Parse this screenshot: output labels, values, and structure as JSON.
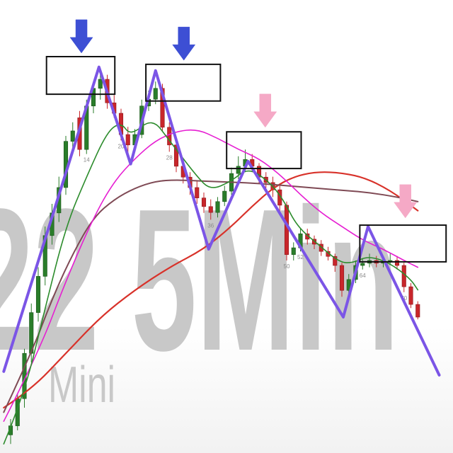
{
  "watermark": {
    "main_text": "22 5Min",
    "sub_text": "Mini",
    "color": "#c8c8c8"
  },
  "chart_data": {
    "type": "line",
    "xlim": [
      0,
      64
    ],
    "ylim": [
      0,
      100
    ],
    "grid": false,
    "legend": "none",
    "up_color": "#2a7d2a",
    "down_color": "#c8262b",
    "candles_format": [
      "x",
      "open",
      "high",
      "low",
      "close"
    ],
    "candles": [
      [
        1,
        4,
        7.5,
        2,
        6
      ],
      [
        2,
        6,
        13,
        5,
        12
      ],
      [
        3,
        12,
        23,
        10,
        22
      ],
      [
        4,
        22,
        33,
        20,
        31
      ],
      [
        5,
        31,
        41,
        29,
        39
      ],
      [
        6,
        39,
        50,
        37,
        48
      ],
      [
        7,
        48,
        55,
        46,
        53
      ],
      [
        8,
        53,
        61,
        51,
        58.6
      ],
      [
        9,
        58.6,
        70,
        57,
        68.8
      ],
      [
        10,
        68.8,
        73,
        66,
        71.1
      ],
      [
        11,
        74,
        75.5,
        65.5,
        67
      ],
      [
        12,
        67,
        78,
        66,
        76.6
      ],
      [
        13,
        76.6,
        82,
        75,
        80.5
      ],
      [
        14,
        80.5,
        84.5,
        78,
        82.5
      ],
      [
        15,
        82.5,
        83.5,
        76,
        77.3
      ],
      [
        16,
        77.3,
        79,
        74,
        75
      ],
      [
        17,
        75,
        76,
        69,
        70.3
      ],
      [
        18,
        70.3,
        72,
        66,
        68
      ],
      [
        19,
        68,
        71.5,
        66.5,
        70.3
      ],
      [
        20,
        70.3,
        78,
        69.5,
        76.6
      ],
      [
        21,
        76.6,
        80,
        75.5,
        78.1
      ],
      [
        22,
        78.1,
        82,
        77,
        80.5
      ],
      [
        23,
        80.5,
        81.5,
        71,
        71.9
      ],
      [
        24,
        71.9,
        73,
        66.5,
        68
      ],
      [
        25,
        68,
        69,
        62,
        63.3
      ],
      [
        26,
        63.3,
        65,
        59.5,
        60.9
      ],
      [
        27,
        60.9,
        62,
        57,
        58.6
      ],
      [
        28,
        58.6,
        60,
        55,
        56.3
      ],
      [
        29,
        56.3,
        57.5,
        53,
        54.4
      ],
      [
        30,
        54.4,
        56,
        51.5,
        53.1
      ],
      [
        31,
        53.1,
        56.5,
        52,
        55.5
      ],
      [
        32,
        55.5,
        59,
        54.5,
        57.8
      ],
      [
        33,
        57.8,
        63,
        57,
        61.7
      ],
      [
        34,
        61.7,
        65.5,
        60.5,
        63.3
      ],
      [
        35,
        63.3,
        67,
        62,
        64.8
      ],
      [
        36,
        64.8,
        66,
        62,
        63.3
      ],
      [
        37,
        63.3,
        64,
        59.5,
        60.9
      ],
      [
        38,
        60.9,
        62,
        58.5,
        59.7
      ],
      [
        39,
        59.7,
        61,
        56.5,
        58.1
      ],
      [
        40,
        58.1,
        59,
        53.5,
        54.7
      ],
      [
        41,
        54.7,
        55.5,
        42.5,
        43.8
      ],
      [
        42,
        43.8,
        46.5,
        42.5,
        45.3
      ],
      [
        43,
        45.3,
        49.5,
        44.5,
        48.4
      ],
      [
        44,
        48.4,
        49.5,
        46,
        47.2
      ],
      [
        45,
        47.2,
        48,
        45,
        46.1
      ],
      [
        46,
        46.1,
        47,
        43.5,
        44.5
      ],
      [
        47,
        44.5,
        45.5,
        42.5,
        43.4
      ],
      [
        48,
        43.4,
        44,
        40,
        41.4
      ],
      [
        49,
        41.4,
        42,
        34.5,
        35.9
      ],
      [
        50,
        35.9,
        39.5,
        35,
        38.3
      ],
      [
        51,
        38.3,
        42.5,
        37.5,
        41.4
      ],
      [
        52,
        41.4,
        43,
        40.5,
        41.9
      ],
      [
        53,
        41.9,
        44,
        41,
        42.5
      ],
      [
        54,
        42.5,
        43.5,
        41,
        41.9
      ],
      [
        55,
        41.9,
        43.5,
        41,
        42.2
      ],
      [
        56,
        42.2,
        44,
        41.5,
        42.5
      ],
      [
        57,
        42.5,
        43.5,
        40.5,
        41.4
      ],
      [
        58,
        41.4,
        42,
        35.5,
        36.7
      ],
      [
        59,
        36.7,
        37.5,
        32,
        32.8
      ],
      [
        60,
        32.8,
        33.5,
        29.5,
        30
      ]
    ],
    "series": [
      {
        "color": "#d8322a",
        "points": [
          [
            0,
            10
          ],
          [
            4,
            14
          ],
          [
            9,
            22
          ],
          [
            14,
            30
          ],
          [
            19,
            36
          ],
          [
            24,
            41
          ],
          [
            29,
            45
          ],
          [
            33,
            50
          ],
          [
            36,
            54.5
          ],
          [
            39,
            58.5
          ],
          [
            42,
            61
          ],
          [
            45,
            62
          ],
          [
            48,
            62
          ],
          [
            52,
            61
          ],
          [
            56,
            58
          ],
          [
            60,
            53.5
          ]
        ]
      },
      {
        "color": "#7f4a55",
        "points": [
          [
            0,
            9
          ],
          [
            4,
            22
          ],
          [
            7,
            34
          ],
          [
            10,
            44
          ],
          [
            13,
            52
          ],
          [
            16,
            56
          ],
          [
            19,
            58.5
          ],
          [
            22,
            60
          ],
          [
            25,
            60.3
          ],
          [
            29,
            60
          ],
          [
            33,
            59.8
          ],
          [
            37,
            59.5
          ],
          [
            41,
            59
          ],
          [
            45,
            58.5
          ],
          [
            49,
            58
          ],
          [
            53,
            57.5
          ],
          [
            57,
            56.5
          ],
          [
            60,
            55.5
          ]
        ]
      },
      {
        "color": "#e61ed2",
        "points": [
          [
            0,
            7
          ],
          [
            5,
            22
          ],
          [
            9,
            38
          ],
          [
            13,
            52
          ],
          [
            16,
            60
          ],
          [
            19,
            65
          ],
          [
            22,
            69
          ],
          [
            25,
            71
          ],
          [
            28,
            71.5
          ],
          [
            31,
            69.5
          ],
          [
            34,
            67
          ],
          [
            37,
            65
          ],
          [
            40,
            61.5
          ],
          [
            43,
            57
          ],
          [
            46,
            53
          ],
          [
            49,
            50
          ],
          [
            52,
            47
          ],
          [
            55,
            45
          ],
          [
            58,
            42.5
          ],
          [
            60,
            41
          ]
        ]
      },
      {
        "color": "#2c8c2c",
        "points": [
          [
            0,
            2
          ],
          [
            3,
            13
          ],
          [
            6,
            32
          ],
          [
            9,
            50
          ],
          [
            12,
            61
          ],
          [
            15,
            71
          ],
          [
            17,
            73
          ],
          [
            18.4,
            70
          ],
          [
            21.5,
            74
          ],
          [
            24,
            69
          ],
          [
            28,
            61
          ],
          [
            30,
            58
          ],
          [
            33,
            60
          ],
          [
            35.4,
            63
          ],
          [
            38.4,
            60
          ],
          [
            40.5,
            56
          ],
          [
            42.5,
            50
          ],
          [
            45.6,
            46
          ],
          [
            48.7,
            42
          ],
          [
            50.7,
            42
          ],
          [
            52.8,
            43.5
          ],
          [
            55.9,
            42
          ],
          [
            58.9,
            38.5
          ],
          [
            60,
            36
          ]
        ]
      }
    ],
    "zigzag": {
      "color": "#7b55e6",
      "points": [
        [
          0,
          18
        ],
        [
          13.8,
          85.2
        ],
        [
          18.4,
          63.8
        ],
        [
          22,
          84.4
        ],
        [
          29.7,
          45
        ],
        [
          35.4,
          64.4
        ],
        [
          49.2,
          30
        ],
        [
          52.8,
          50
        ],
        [
          63.1,
          17.2
        ]
      ]
    },
    "annotations": {
      "box_color": "#111111",
      "boxes": [
        {
          "x_from": 6.2,
          "x_to": 16.1,
          "y_from": 79.2,
          "y_to": 87.5
        },
        {
          "x_from": 20.6,
          "x_to": 31.4,
          "y_from": 77.7,
          "y_to": 85.8
        },
        {
          "x_from": 32.3,
          "x_to": 43.1,
          "y_from": 62.8,
          "y_to": 70.9
        },
        {
          "x_from": 51.6,
          "x_to": 64.1,
          "y_from": 42.2,
          "y_to": 50.3
        }
      ],
      "arrows": [
        {
          "x": 11.26,
          "y_tip": 88.3,
          "color": "#3d4fd4",
          "icon": "down-arrow-icon"
        },
        {
          "x": 26.1,
          "y_tip": 86.7,
          "color": "#3d4fd4",
          "icon": "down-arrow-icon"
        },
        {
          "x": 37.9,
          "y_tip": 71.9,
          "color": "#f5a9c6",
          "icon": "down-arrow-icon"
        },
        {
          "x": 58.2,
          "y_tip": 51.9,
          "color": "#f5a9c6",
          "icon": "down-arrow-icon"
        }
      ]
    },
    "bar_labels": [
      {
        "x": 12,
        "text": "14"
      },
      {
        "x": 17,
        "text": "20"
      },
      {
        "x": 24,
        "text": "28"
      },
      {
        "x": 30,
        "text": "36"
      },
      {
        "x": 41,
        "text": "50"
      },
      {
        "x": 43,
        "text": "52"
      },
      {
        "x": 52,
        "text": "64"
      },
      {
        "x": 58,
        "text": "70"
      }
    ],
    "bar_label_color": "#8a8a8a"
  }
}
